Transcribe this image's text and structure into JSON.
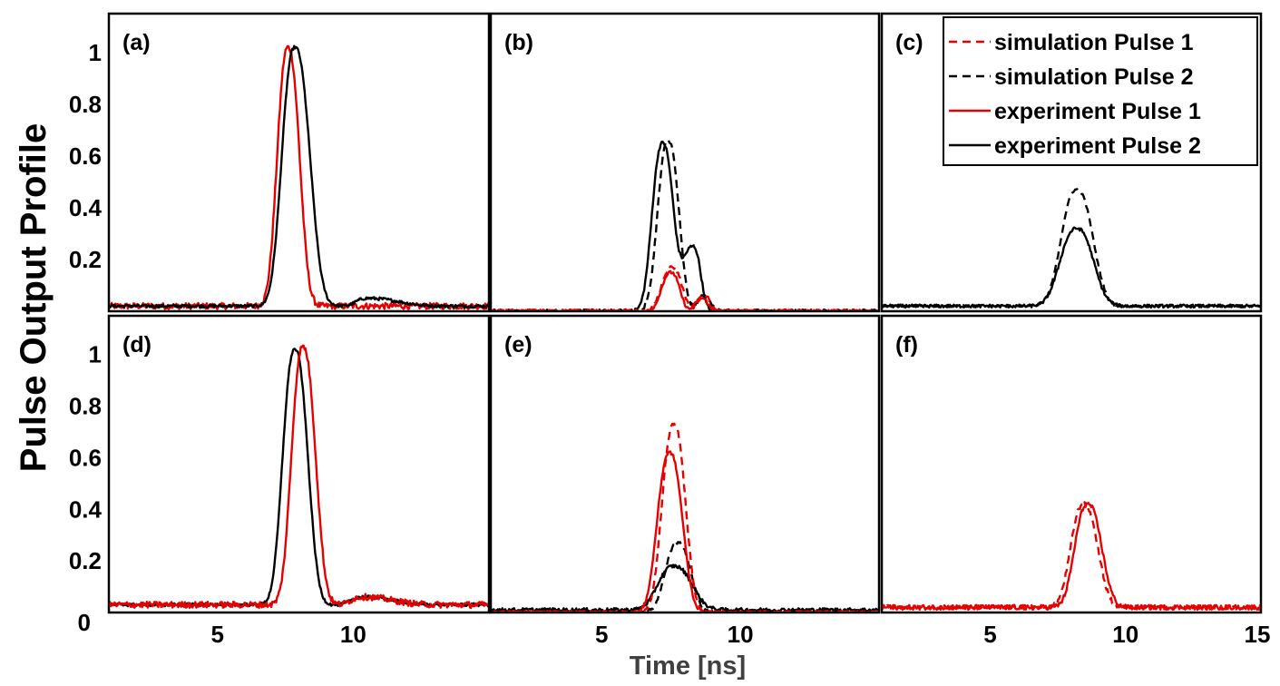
{
  "chart_data": {
    "type": "line",
    "ylabel": "Pulse Output Profile",
    "xlabel": "Time [ns]",
    "xlim": [
      1,
      15
    ],
    "ylim": [
      0,
      1.15
    ],
    "grid": false,
    "x_ticks": [
      "5",
      "10",
      "15"
    ],
    "y_ticks": [
      "0.2",
      "0.4",
      "0.6",
      "0.8",
      "1"
    ],
    "y_tick_zero": "0",
    "colors": {
      "pulse1": "#e60000",
      "pulse2": "#000000"
    },
    "legend": {
      "placement": "top-right of panel (c)",
      "entries": [
        {
          "label": "simulation Pulse 1",
          "color": "#e60000",
          "style": "dashed"
        },
        {
          "label": "simulation Pulse 2",
          "color": "#000000",
          "style": "dashed"
        },
        {
          "label": "experiment Pulse 1",
          "color": "#e60000",
          "style": "solid"
        },
        {
          "label": "experiment Pulse 2",
          "color": "#000000",
          "style": "solid"
        }
      ]
    },
    "panels": [
      {
        "label": "(a)",
        "series": [
          {
            "name": "experiment Pulse 1",
            "color": "#e60000",
            "dash": false,
            "baseline": 0.02,
            "peaks": [
              {
                "center": 7.6,
                "amp": 1.0,
                "rise": 0.52,
                "fall": 0.55
              }
            ],
            "noise": 0.012
          },
          {
            "name": "experiment Pulse 2",
            "color": "#000000",
            "dash": false,
            "baseline": 0.02,
            "peaks": [
              {
                "center": 7.85,
                "amp": 1.0,
                "rise": 0.62,
                "fall": 0.72
              },
              {
                "center": 10.5,
                "amp": 0.03,
                "rise": 0.5,
                "fall": 1.5
              }
            ],
            "noise": 0.006
          }
        ]
      },
      {
        "label": "(b)",
        "series": [
          {
            "name": "experiment Pulse 2",
            "color": "#000000",
            "dash": false,
            "baseline": 0.0,
            "peaks": [
              {
                "center": 7.2,
                "amp": 0.65,
                "rise": 0.5,
                "fall": 0.5
              },
              {
                "center": 8.3,
                "amp": 0.25,
                "rise": 0.5,
                "fall": 0.35
              }
            ],
            "noise": 0.007
          },
          {
            "name": "simulation Pulse 2",
            "color": "#000000",
            "dash": true,
            "baseline": 0.0,
            "peaks": [
              {
                "center": 7.4,
                "amp": 0.66,
                "rise": 0.5,
                "fall": 0.5
              },
              {
                "center": 8.7,
                "amp": 0.06,
                "rise": 0.3,
                "fall": 0.3
              }
            ],
            "noise": 0.007
          },
          {
            "name": "experiment Pulse 1",
            "color": "#e60000",
            "dash": false,
            "baseline": 0.0,
            "peaks": [
              {
                "center": 7.5,
                "amp": 0.15,
                "rise": 0.45,
                "fall": 0.4
              },
              {
                "center": 8.6,
                "amp": 0.05,
                "rise": 0.3,
                "fall": 0.3
              }
            ],
            "noise": 0.006
          },
          {
            "name": "simulation Pulse 1",
            "color": "#e60000",
            "dash": true,
            "baseline": 0.0,
            "peaks": [
              {
                "center": 7.55,
                "amp": 0.17,
                "rise": 0.5,
                "fall": 0.45
              },
              {
                "center": 8.7,
                "amp": 0.06,
                "rise": 0.3,
                "fall": 0.3
              }
            ],
            "noise": 0.006
          }
        ]
      },
      {
        "label": "(c)",
        "series": [
          {
            "name": "experiment Pulse 2",
            "color": "#000000",
            "dash": false,
            "baseline": 0.02,
            "peaks": [
              {
                "center": 8.2,
                "amp": 0.3,
                "rise": 0.8,
                "fall": 0.8
              }
            ],
            "noise": 0.006
          },
          {
            "name": "simulation Pulse 2",
            "color": "#000000",
            "dash": true,
            "baseline": 0.02,
            "peaks": [
              {
                "center": 8.2,
                "amp": 0.45,
                "rise": 0.75,
                "fall": 0.78
              }
            ],
            "noise": 0.004
          }
        ]
      },
      {
        "label": "(d)",
        "series": [
          {
            "name": "experiment Pulse 2",
            "color": "#000000",
            "dash": false,
            "baseline": 0.03,
            "peaks": [
              {
                "center": 7.85,
                "amp": 0.99,
                "rise": 0.58,
                "fall": 0.62
              },
              {
                "center": 10.3,
                "amp": 0.03,
                "rise": 0.5,
                "fall": 1.5
              }
            ],
            "noise": 0.006
          },
          {
            "name": "experiment Pulse 1",
            "color": "#e60000",
            "dash": false,
            "baseline": 0.03,
            "peaks": [
              {
                "center": 8.15,
                "amp": 1.0,
                "rise": 0.55,
                "fall": 0.6
              },
              {
                "center": 10.3,
                "amp": 0.03,
                "rise": 0.5,
                "fall": 1.5
              }
            ],
            "noise": 0.012
          }
        ]
      },
      {
        "label": "(e)",
        "series": [
          {
            "name": "experiment Pulse 2",
            "color": "#000000",
            "dash": false,
            "baseline": 0.01,
            "peaks": [
              {
                "center": 7.6,
                "amp": 0.17,
                "rise": 0.75,
                "fall": 0.85
              }
            ],
            "noise": 0.007
          },
          {
            "name": "simulation Pulse 2",
            "color": "#000000",
            "dash": true,
            "baseline": 0.0,
            "peaks": [
              {
                "center": 7.75,
                "amp": 0.27,
                "rise": 0.6,
                "fall": 0.6
              }
            ],
            "noise": 0.006
          },
          {
            "name": "experiment Pulse 1",
            "color": "#e60000",
            "dash": false,
            "baseline": 0.0,
            "peaks": [
              {
                "center": 7.45,
                "amp": 0.62,
                "rise": 0.58,
                "fall": 0.6
              }
            ],
            "noise": 0.006
          },
          {
            "name": "simulation Pulse 1",
            "color": "#e60000",
            "dash": true,
            "baseline": 0.0,
            "peaks": [
              {
                "center": 7.6,
                "amp": 0.73,
                "rise": 0.55,
                "fall": 0.55
              }
            ],
            "noise": 0.006
          }
        ]
      },
      {
        "label": "(f)",
        "series": [
          {
            "name": "experiment Pulse 1",
            "color": "#e60000",
            "dash": false,
            "baseline": 0.02,
            "peaks": [
              {
                "center": 8.6,
                "amp": 0.4,
                "rise": 0.62,
                "fall": 0.68
              }
            ],
            "noise": 0.009
          },
          {
            "name": "simulation Pulse 1",
            "color": "#e60000",
            "dash": true,
            "baseline": 0.02,
            "peaks": [
              {
                "center": 8.45,
                "amp": 0.4,
                "rise": 0.62,
                "fall": 0.68
              }
            ],
            "noise": 0.009
          }
        ]
      }
    ]
  }
}
